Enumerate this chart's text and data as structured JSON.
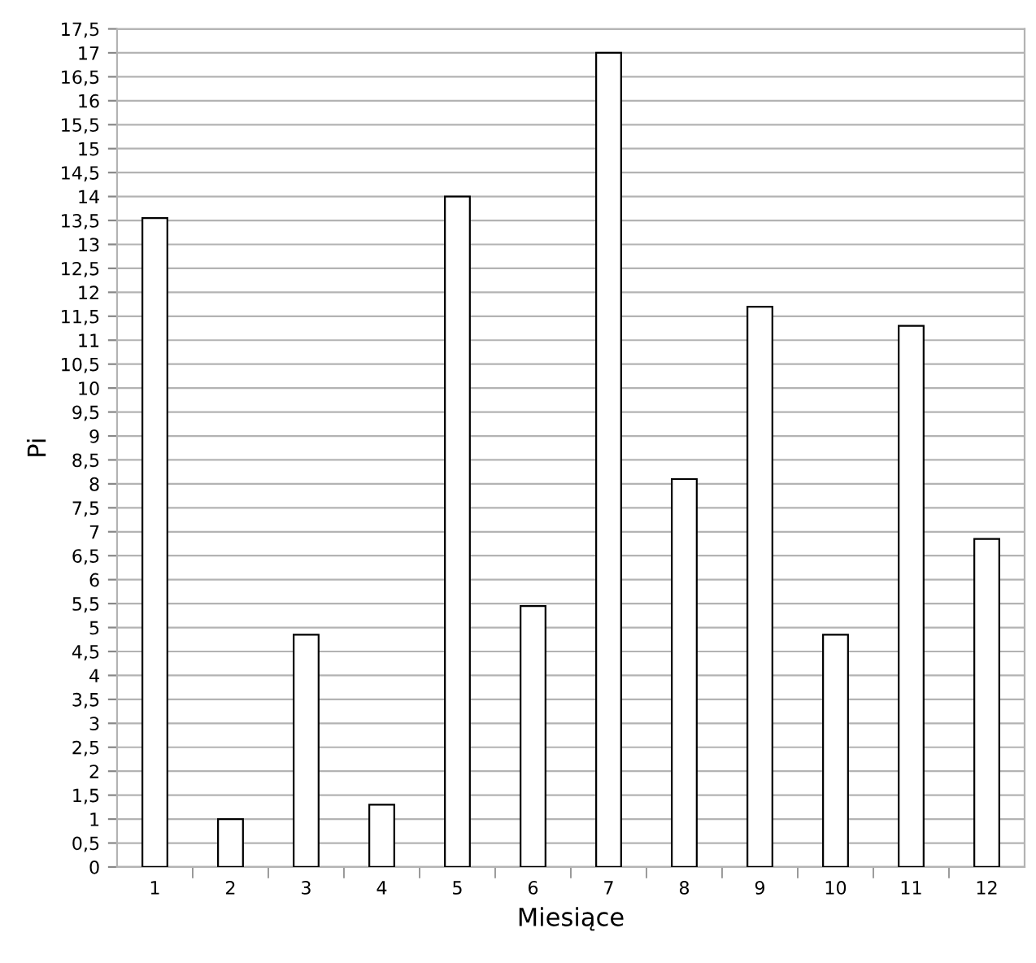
{
  "chart_data": {
    "type": "bar",
    "xlabel": "Miesiące",
    "ylabel": "Pi",
    "categories": [
      "1",
      "2",
      "3",
      "4",
      "5",
      "6",
      "7",
      "8",
      "9",
      "10",
      "11",
      "12"
    ],
    "values": [
      13.55,
      1,
      4.85,
      1.3,
      14,
      5.45,
      17,
      8.1,
      11.7,
      4.85,
      11.3,
      6.85
    ],
    "color": "#ffffff",
    "ylim": [
      0,
      17.5
    ],
    "yticks": [
      0,
      {
        "value": 0.5,
        "label": "0,5"
      },
      1,
      {
        "value": 1.5,
        "label": "1,5"
      },
      2,
      {
        "value": 2.5,
        "label": "2,5"
      },
      3,
      {
        "value": 3.5,
        "label": "3,5"
      },
      4,
      {
        "value": 4.5,
        "label": "4,5"
      },
      5,
      {
        "value": 5.5,
        "label": "5,5"
      },
      6,
      {
        "value": 6.5,
        "label": "6,5"
      },
      7,
      {
        "value": 7.5,
        "label": "7,5"
      },
      8,
      {
        "value": 8.5,
        "label": "8,5"
      },
      9,
      {
        "value": 9.5,
        "label": "9,5"
      },
      10,
      {
        "value": 10.5,
        "label": "10,5"
      },
      11,
      {
        "value": 11.5,
        "label": "11,5"
      },
      12,
      {
        "value": 12.5,
        "label": "12,5"
      },
      13,
      {
        "value": 13.5,
        "label": "13,5"
      },
      14,
      {
        "value": 14.5,
        "label": "14,5"
      },
      15,
      {
        "value": 15.5,
        "label": "15,5"
      },
      16,
      {
        "value": 16.5,
        "label": "16,5"
      },
      17,
      {
        "value": 17.5,
        "label": "17,5"
      }
    ],
    "grid": "y",
    "legend": false
  }
}
